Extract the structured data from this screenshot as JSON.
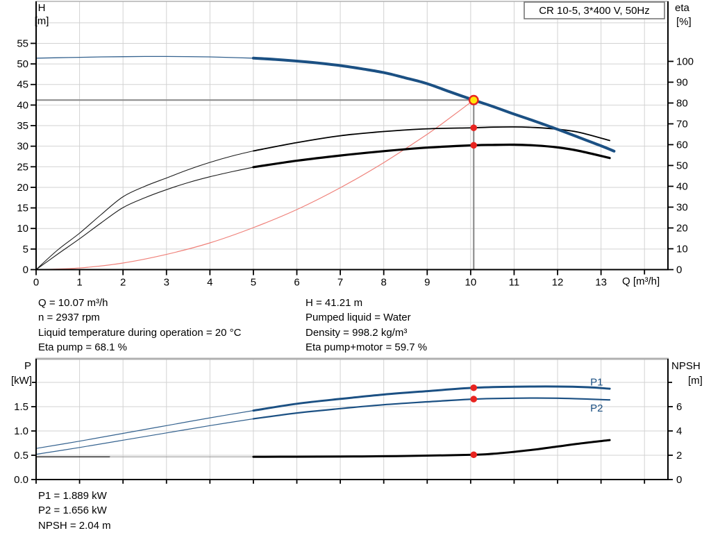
{
  "title_box": {
    "text": "CR 10-5, 3*400 V, 50Hz"
  },
  "axis_labels": {
    "top_left_1": "H",
    "top_left_2": "[m]",
    "top_right_1": "eta",
    "top_right_2": "[%]",
    "top_x": "Q [m³/h]",
    "bottom_left_1": "P",
    "bottom_left_2": "[kW]",
    "bottom_right_1": "NPSH",
    "bottom_right_2": "[m]"
  },
  "annotations": {
    "top_left": [
      "Q = 10.07 m³/h",
      "n = 2937 rpm",
      "Liquid temperature during operation = 20 °C",
      "Eta pump = 68.1 %"
    ],
    "top_right": [
      "H = 41.21 m",
      "Pumped liquid = Water",
      "Density = 998.2 kg/m³",
      "Eta pump+motor = 59.7 %"
    ],
    "bottom": [
      "P1 = 1.889 kW",
      "P2 = 1.656 kW",
      "NPSH = 2.04 m"
    ]
  },
  "colors": {
    "blue": "#1b5083",
    "blue_thin": "#33618e",
    "black": "#000000",
    "black_thin": "#1a1a1a",
    "npsh_faint": "#9b9b9b",
    "system": "#ef8079",
    "marker_red": "#e8231f",
    "duty_yellow": "#ffe60a",
    "grid": "#d2d2d2",
    "axis": "#000000",
    "ref": "#8e8e8e",
    "top_border": "#b0b0b0",
    "title_border": "#6e6e6e"
  },
  "chart_data": [
    {
      "id": "hq-eta-chart",
      "type": "line",
      "title": "CR 10-5, 3*400 V, 50Hz",
      "xlabel": "Q [m³/h]",
      "ylabel": "H [m]",
      "y2label": "eta [%]",
      "xlim": [
        0,
        14.54
      ],
      "ylim": [
        0,
        65.2
      ],
      "y2lim": [
        0,
        128.8
      ],
      "grid": true,
      "x_ticks": [
        [
          0,
          "0"
        ],
        [
          1,
          "1"
        ],
        [
          2,
          "2"
        ],
        [
          3,
          "3"
        ],
        [
          4,
          "4"
        ],
        [
          5,
          "5"
        ],
        [
          6,
          "6"
        ],
        [
          7,
          "7"
        ],
        [
          8,
          "8"
        ],
        [
          9,
          "9"
        ],
        [
          10,
          "10"
        ],
        [
          11,
          "11"
        ],
        [
          12,
          "12"
        ],
        [
          13,
          "13"
        ]
      ],
      "x_ticks_minor": [
        14
      ],
      "y_ticks": [
        [
          0,
          "0"
        ],
        [
          5,
          "5"
        ],
        [
          10,
          "10"
        ],
        [
          15,
          "15"
        ],
        [
          20,
          "20"
        ],
        [
          25,
          "25"
        ],
        [
          30,
          "30"
        ],
        [
          35,
          "35"
        ],
        [
          40,
          "40"
        ],
        [
          45,
          "45"
        ],
        [
          50,
          "50"
        ],
        [
          55,
          "55"
        ]
      ],
      "y2_ticks": [
        [
          0,
          "0"
        ],
        [
          10,
          "10"
        ],
        [
          20,
          "20"
        ],
        [
          30,
          "30"
        ],
        [
          40,
          "40"
        ],
        [
          50,
          "50"
        ],
        [
          60,
          "60"
        ],
        [
          70,
          "70"
        ],
        [
          80,
          "80"
        ],
        [
          90,
          "90"
        ],
        [
          100,
          "100"
        ]
      ],
      "grid_x": [
        1,
        2,
        3,
        4,
        5,
        6,
        7,
        8,
        9,
        10,
        11,
        12,
        13,
        14
      ],
      "grid_y": [
        5,
        10,
        15,
        20,
        25,
        30,
        35,
        40,
        45,
        50,
        55,
        60
      ],
      "duty_point": {
        "q": 10.07,
        "h": 41.21
      },
      "ref_lines": {
        "h_value": 41.21,
        "q_value": 10.07
      },
      "series": [
        {
          "name": "pump-curve-low-flow",
          "axis": "y",
          "color": "blue_thin",
          "width": 1.3,
          "points": [
            [
              0,
              51.4
            ],
            [
              0.5,
              51.5
            ],
            [
              1,
              51.6
            ],
            [
              1.5,
              51.7
            ],
            [
              2,
              51.75
            ],
            [
              2.5,
              51.8
            ],
            [
              3,
              51.8
            ],
            [
              3.5,
              51.78
            ],
            [
              4,
              51.7
            ],
            [
              4.5,
              51.55
            ],
            [
              5,
              51.4
            ]
          ]
        },
        {
          "name": "system-curve",
          "axis": "y",
          "color": "system",
          "width": 1.2,
          "points": [
            [
              0,
              0
            ],
            [
              1,
              0.4
            ],
            [
              2,
              1.6
            ],
            [
              3,
              3.7
            ],
            [
              4,
              6.5
            ],
            [
              5,
              10.2
            ],
            [
              6,
              14.6
            ],
            [
              7,
              19.9
            ],
            [
              8,
              26.0
            ],
            [
              9,
              32.9
            ],
            [
              9.5,
              36.7
            ],
            [
              10.07,
              41.21
            ]
          ]
        },
        {
          "name": "eta-pump-curve-low-flow",
          "axis": "y2",
          "color": "black_thin",
          "width": 1.1,
          "points": [
            [
              0,
              0
            ],
            [
              0.5,
              9.5
            ],
            [
              1,
              17.5
            ],
            [
              1.5,
              26.5
            ],
            [
              2,
              35
            ],
            [
              2.5,
              40
            ],
            [
              3,
              44
            ],
            [
              3.5,
              48
            ],
            [
              4,
              51.5
            ],
            [
              4.5,
              54.5
            ],
            [
              5,
              57
            ]
          ]
        },
        {
          "name": "eta-pump-motor-curve-low-flow",
          "axis": "y2",
          "color": "black_thin",
          "width": 1.1,
          "points": [
            [
              0,
              0
            ],
            [
              0.5,
              7.5
            ],
            [
              1,
              14.8
            ],
            [
              1.5,
              22.5
            ],
            [
              2,
              29.8
            ],
            [
              2.5,
              34.5
            ],
            [
              3,
              38.4
            ],
            [
              3.5,
              41.8
            ],
            [
              4,
              44.6
            ],
            [
              4.5,
              47
            ],
            [
              5,
              49.2
            ]
          ]
        },
        {
          "name": "eta-pump-curve",
          "axis": "y2",
          "color": "black",
          "width": 1.8,
          "points": [
            [
              5,
              57
            ],
            [
              6,
              61
            ],
            [
              7,
              64.3
            ],
            [
              8,
              66.3
            ],
            [
              9,
              67.6
            ],
            [
              10.07,
              68.1
            ],
            [
              10.5,
              68.4
            ],
            [
              11,
              68.5
            ],
            [
              11.5,
              68.2
            ],
            [
              12,
              67.4
            ],
            [
              12.5,
              65.9
            ],
            [
              13.2,
              62
            ]
          ]
        },
        {
          "name": "eta-pump-motor-curve",
          "axis": "y2",
          "color": "black",
          "width": 3.2,
          "points": [
            [
              5,
              49.2
            ],
            [
              6,
              52.3
            ],
            [
              7,
              54.8
            ],
            [
              8,
              56.9
            ],
            [
              9,
              58.6
            ],
            [
              10.07,
              59.7
            ],
            [
              10.5,
              59.9
            ],
            [
              11,
              60
            ],
            [
              11.5,
              59.6
            ],
            [
              12,
              58.7
            ],
            [
              12.5,
              57
            ],
            [
              13.2,
              53.6
            ]
          ]
        },
        {
          "name": "pump-curve",
          "axis": "y",
          "color": "blue",
          "width": 4,
          "points": [
            [
              5,
              51.4
            ],
            [
              5.5,
              51.1
            ],
            [
              6,
              50.7
            ],
            [
              6.5,
              50.2
            ],
            [
              7,
              49.6
            ],
            [
              7.5,
              48.8
            ],
            [
              8,
              47.9
            ],
            [
              8.5,
              46.6
            ],
            [
              9,
              45.2
            ],
            [
              9.5,
              43.3
            ],
            [
              10.07,
              41.21
            ],
            [
              10.5,
              39.7
            ],
            [
              11,
              37.8
            ],
            [
              11.5,
              36.0
            ],
            [
              12,
              34.1
            ],
            [
              12.5,
              32.1
            ],
            [
              13,
              30.1
            ],
            [
              13.3,
              28.8
            ]
          ]
        }
      ],
      "markers": [
        {
          "name": "eta-pump-marker",
          "q": 10.07,
          "value": 68.1,
          "axis": "y2",
          "style": "dot"
        },
        {
          "name": "eta-pump-motor-marker",
          "q": 10.07,
          "value": 59.7,
          "axis": "y2",
          "style": "dot"
        },
        {
          "name": "duty-point-marker",
          "q": 10.07,
          "value": 41.21,
          "axis": "y",
          "style": "duty"
        }
      ],
      "curve_labels": []
    },
    {
      "id": "power-npsh-chart",
      "type": "line",
      "title": "",
      "xlabel": "",
      "ylabel": "P [kW]",
      "y2label": "NPSH [m]",
      "xlim": [
        0,
        14.54
      ],
      "ylim": [
        0,
        2.486
      ],
      "y2lim": [
        0,
        9.94
      ],
      "grid": true,
      "x_ticks": [],
      "x_ticks_minor": [
        0,
        1,
        2,
        3,
        4,
        5,
        6,
        7,
        8,
        9,
        10,
        11,
        12,
        13,
        14
      ],
      "y_ticks": [
        [
          0,
          "0.0"
        ],
        [
          0.5,
          "0.5"
        ],
        [
          1,
          "1.0"
        ],
        [
          1.5,
          "1.5"
        ]
      ],
      "y_ticks_minor": [
        2.0
      ],
      "y2_ticks": [
        [
          0,
          "0"
        ],
        [
          2,
          "2"
        ],
        [
          4,
          "4"
        ],
        [
          6,
          "6"
        ]
      ],
      "y2_ticks_minor": [
        8
      ],
      "grid_x": [
        1,
        2,
        3,
        4,
        5,
        6,
        7,
        8,
        9,
        10,
        11,
        12,
        13,
        14
      ],
      "grid_y": [
        0.5,
        1.0,
        1.5,
        2.0
      ],
      "series": [
        {
          "name": "p1-curve-low-flow",
          "axis": "y",
          "color": "blue_thin",
          "width": 1.2,
          "points": [
            [
              0,
              0.64
            ],
            [
              1,
              0.79
            ],
            [
              2,
              0.95
            ],
            [
              3,
              1.11
            ],
            [
              4,
              1.27
            ],
            [
              5,
              1.42
            ]
          ]
        },
        {
          "name": "p2-curve-low-flow",
          "axis": "y",
          "color": "blue_thin",
          "width": 1.2,
          "points": [
            [
              0,
              0.52
            ],
            [
              1,
              0.66
            ],
            [
              2,
              0.81
            ],
            [
              3,
              0.96
            ],
            [
              4,
              1.11
            ],
            [
              5,
              1.25
            ]
          ]
        },
        {
          "name": "npsh-curve-start",
          "axis": "y2",
          "color": "black_thin",
          "width": 1.3,
          "points": [
            [
              0,
              1.87
            ],
            [
              1.7,
              1.87
            ]
          ]
        },
        {
          "name": "npsh-curve-low-flow",
          "axis": "y2",
          "color": "npsh_faint",
          "width": 1.1,
          "points": [
            [
              1.7,
              1.87
            ],
            [
              5,
              1.87
            ]
          ]
        },
        {
          "name": "p1-curve",
          "axis": "y",
          "color": "blue",
          "width": 3,
          "points": [
            [
              5,
              1.42
            ],
            [
              6,
              1.56
            ],
            [
              7,
              1.66
            ],
            [
              8,
              1.75
            ],
            [
              9,
              1.82
            ],
            [
              10.07,
              1.889
            ],
            [
              11,
              1.91
            ],
            [
              12,
              1.915
            ],
            [
              12.7,
              1.9
            ],
            [
              13.2,
              1.87
            ]
          ]
        },
        {
          "name": "p2-curve",
          "axis": "y",
          "color": "blue",
          "width": 2.2,
          "points": [
            [
              5,
              1.25
            ],
            [
              6,
              1.37
            ],
            [
              7,
              1.46
            ],
            [
              8,
              1.54
            ],
            [
              9,
              1.6
            ],
            [
              10.07,
              1.656
            ],
            [
              11,
              1.675
            ],
            [
              12,
              1.675
            ],
            [
              13.2,
              1.64
            ]
          ]
        },
        {
          "name": "npsh-curve",
          "axis": "y2",
          "color": "black",
          "width": 3,
          "points": [
            [
              5,
              1.87
            ],
            [
              6,
              1.88
            ],
            [
              7,
              1.89
            ],
            [
              8,
              1.92
            ],
            [
              9,
              1.97
            ],
            [
              10.07,
              2.04
            ],
            [
              10.5,
              2.12
            ],
            [
              11,
              2.28
            ],
            [
              11.5,
              2.48
            ],
            [
              12,
              2.72
            ],
            [
              12.5,
              2.96
            ],
            [
              13.2,
              3.25
            ]
          ]
        }
      ],
      "markers": [
        {
          "name": "p1-marker",
          "q": 10.07,
          "value": 1.889,
          "axis": "y",
          "style": "dot"
        },
        {
          "name": "p2-marker",
          "q": 10.07,
          "value": 1.656,
          "axis": "y",
          "style": "dot"
        },
        {
          "name": "npsh-marker",
          "q": 10.07,
          "value": 2.04,
          "axis": "y2",
          "style": "dot"
        }
      ],
      "curve_labels": [
        {
          "text": "P1",
          "q": 12.9,
          "value": 2.01,
          "axis": "y"
        },
        {
          "text": "P2",
          "q": 12.9,
          "value": 1.47,
          "axis": "y"
        }
      ]
    }
  ]
}
